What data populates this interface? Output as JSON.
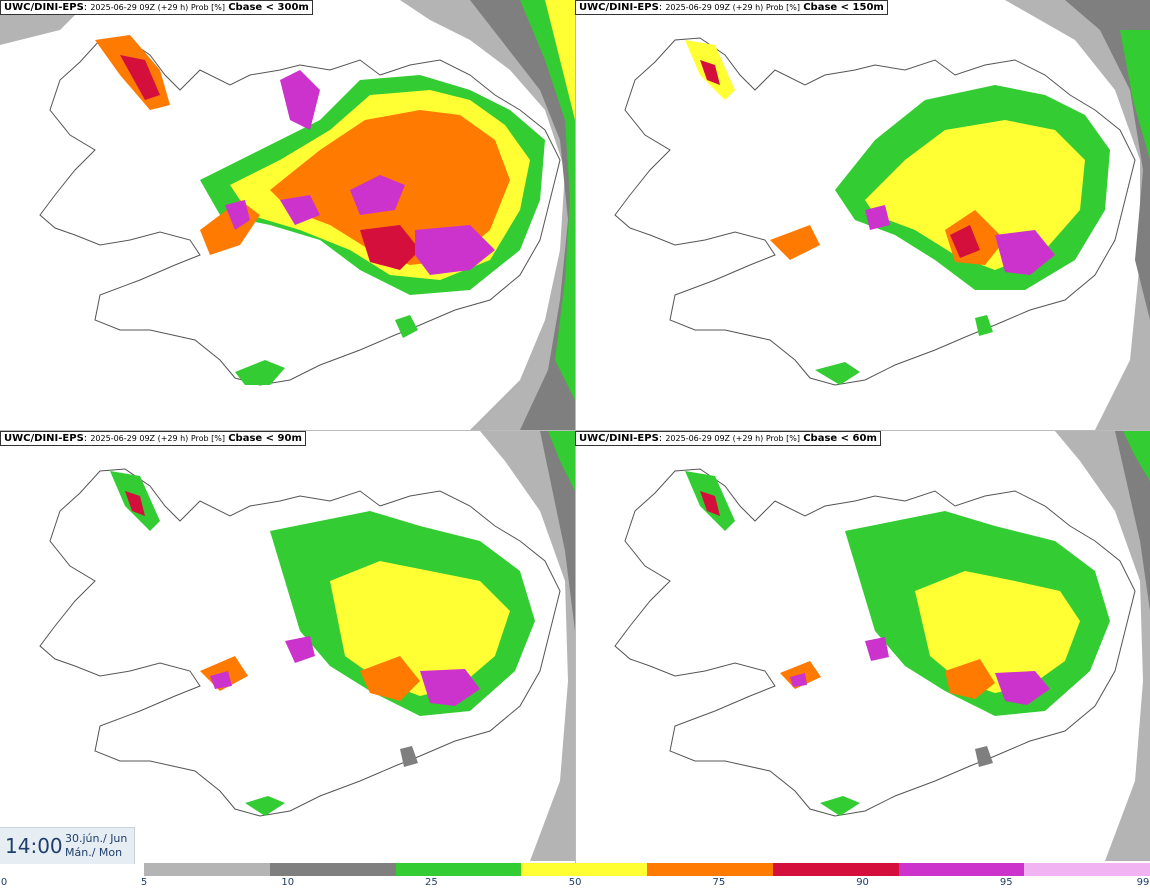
{
  "panels": [
    {
      "model": "UWC/DINI-EPS",
      "meta": "2025-06-29 09Z (+29 h) Prob [%]",
      "cbase": "Cbase < 300m",
      "threshold": 300
    },
    {
      "model": "UWC/DINI-EPS",
      "meta": "2025-06-29 09Z (+29 h) Prob [%]",
      "cbase": "Cbase < 150m",
      "threshold": 150
    },
    {
      "model": "UWC/DINI-EPS",
      "meta": "2025-06-29 09Z (+29 h) Prob [%]",
      "cbase": "Cbase < 90m",
      "threshold": 90
    },
    {
      "model": "UWC/DINI-EPS",
      "meta": "2025-06-29 09Z (+29 h) Prob [%]",
      "cbase": "Cbase < 60m",
      "threshold": 60
    }
  ],
  "valid_time": {
    "clock": "14:00",
    "date_line1": "30.jún./ Jun",
    "date_line2": "Mán./ Mon"
  },
  "colorbar": {
    "ticks": [
      "0",
      "5",
      "10",
      "25",
      "50",
      "75",
      "90",
      "95",
      "99"
    ],
    "bins": [
      {
        "from": 5,
        "to": 10,
        "color": "#b4b4b4"
      },
      {
        "from": 10,
        "to": 25,
        "color": "#7f7f7f"
      },
      {
        "from": 25,
        "to": 50,
        "color": "#33cc33"
      },
      {
        "from": 50,
        "to": 75,
        "color": "#ffff33"
      },
      {
        "from": 75,
        "to": 90,
        "color": "#ff7a00"
      },
      {
        "from": 90,
        "to": 95,
        "color": "#d40f3c"
      },
      {
        "from": 95,
        "to": 99,
        "color": "#cc33cc"
      },
      {
        "from": 99,
        "to": 100,
        "color": "#f2b3f2"
      }
    ]
  }
}
